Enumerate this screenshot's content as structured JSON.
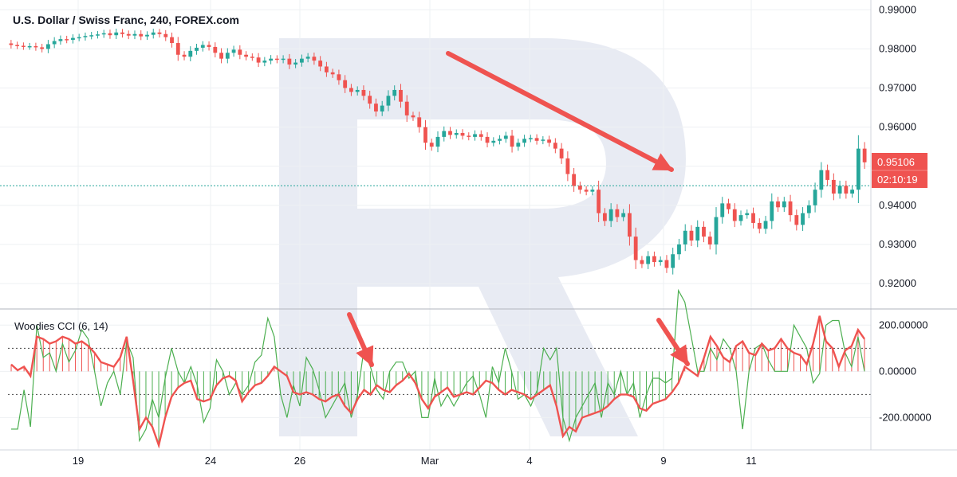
{
  "chart_data": [
    {
      "type": "candlestick",
      "title": "U.S. Dollar / Swiss Franc, 240, FOREX.com",
      "x_ticks": [
        "19",
        "24",
        "26",
        "Mar",
        "4",
        "9",
        "11"
      ],
      "y_ticks": [
        "0.99000",
        "0.98000",
        "0.97000",
        "0.96000",
        "0.95000",
        "0.94000",
        "0.93000",
        "0.92000"
      ],
      "ylim": [
        0.9135,
        0.9925
      ],
      "price_label": "0.95106",
      "countdown_label": "02:10:19",
      "dotted_price_line": 0.945,
      "colors": {
        "up": "#26a69a",
        "down": "#ef5350",
        "arrow": "#ef5350"
      },
      "closes": [
        0.981,
        0.9808,
        0.9806,
        0.9807,
        0.9804,
        0.98,
        0.9812,
        0.982,
        0.9825,
        0.9823,
        0.9828,
        0.983,
        0.9833,
        0.9835,
        0.9837,
        0.984,
        0.9835,
        0.9842,
        0.9838,
        0.9834,
        0.9838,
        0.9832,
        0.9836,
        0.9842,
        0.9838,
        0.983,
        0.9815,
        0.9785,
        0.978,
        0.9795,
        0.9803,
        0.981,
        0.9805,
        0.979,
        0.9775,
        0.979,
        0.9798,
        0.9785,
        0.978,
        0.9778,
        0.9765,
        0.977,
        0.9775,
        0.9772,
        0.9775,
        0.976,
        0.9765,
        0.9775,
        0.978,
        0.977,
        0.9755,
        0.974,
        0.9735,
        0.972,
        0.97,
        0.969,
        0.9695,
        0.968,
        0.966,
        0.964,
        0.9655,
        0.968,
        0.9695,
        0.9665,
        0.963,
        0.9625,
        0.96,
        0.956,
        0.955,
        0.9575,
        0.959,
        0.958,
        0.9585,
        0.9578,
        0.9575,
        0.9582,
        0.9575,
        0.956,
        0.9565,
        0.957,
        0.9578,
        0.955,
        0.956,
        0.957,
        0.9572,
        0.9565,
        0.9568,
        0.956,
        0.9545,
        0.952,
        0.948,
        0.945,
        0.944,
        0.9435,
        0.944,
        0.938,
        0.936,
        0.939,
        0.937,
        0.938,
        0.932,
        0.926,
        0.925,
        0.927,
        0.9255,
        0.926,
        0.924,
        0.9275,
        0.93,
        0.9335,
        0.931,
        0.9345,
        0.932,
        0.93,
        0.937,
        0.9405,
        0.939,
        0.936,
        0.9375,
        0.938,
        0.9355,
        0.934,
        0.936,
        0.941,
        0.9395,
        0.941,
        0.9375,
        0.935,
        0.938,
        0.94,
        0.944,
        0.949,
        0.9465,
        0.943,
        0.945,
        0.943,
        0.944,
        0.9545,
        0.951
      ]
    },
    {
      "type": "line",
      "title": "Woodies CCI (6, 14)",
      "y_ticks": [
        "200.00000",
        "0.00000",
        "-200.00000"
      ],
      "ylim": [
        -340,
        270
      ],
      "reference_lines": [
        100,
        -100
      ],
      "colors": {
        "cci14": "#ef5350",
        "cci6": "#4caf50",
        "histogram_above": "#ef5350",
        "histogram_below": "#4caf50"
      },
      "cci14": [
        30,
        5,
        20,
        -20,
        150,
        140,
        120,
        130,
        150,
        140,
        120,
        130,
        110,
        80,
        40,
        30,
        20,
        60,
        150,
        -40,
        -250,
        -200,
        -240,
        -320,
        -200,
        -110,
        -70,
        -50,
        -40,
        -120,
        -130,
        -120,
        -60,
        -30,
        -20,
        -40,
        -130,
        -90,
        -60,
        -50,
        -20,
        20,
        0,
        -20,
        -90,
        -100,
        -90,
        -100,
        -120,
        -130,
        -110,
        -100,
        -150,
        -180,
        -120,
        -80,
        -100,
        -60,
        -80,
        -90,
        -60,
        -40,
        -10,
        -50,
        -120,
        -160,
        -110,
        -90,
        -70,
        -110,
        -100,
        -90,
        -100,
        -70,
        -40,
        -50,
        -80,
        -100,
        -80,
        -90,
        -100,
        -120,
        -100,
        -80,
        -60,
        -150,
        -280,
        -240,
        -260,
        -200,
        -190,
        -180,
        -170,
        -150,
        -120,
        -100,
        -100,
        -110,
        -160,
        -170,
        -140,
        -130,
        -120,
        -90,
        -50,
        20,
        0,
        -20,
        60,
        150,
        110,
        60,
        40,
        110,
        130,
        80,
        70,
        120,
        90,
        100,
        140,
        100,
        80,
        70,
        30,
        120,
        240,
        130,
        100,
        20,
        90,
        110,
        180,
        140
      ],
      "cci6": [
        -250,
        -250,
        -80,
        -240,
        200,
        60,
        80,
        0,
        120,
        40,
        90,
        180,
        140,
        0,
        -150,
        -50,
        0,
        -100,
        130,
        60,
        -300,
        -250,
        -120,
        -200,
        -30,
        100,
        0,
        -50,
        20,
        -60,
        -220,
        -160,
        50,
        0,
        -100,
        -50,
        -100,
        -60,
        40,
        70,
        230,
        150,
        -100,
        -200,
        -60,
        -150,
        60,
        10,
        -80,
        -200,
        -150,
        -100,
        -50,
        -200,
        -100,
        100,
        20,
        -80,
        -120,
        0,
        40,
        40,
        -30,
        0,
        -200,
        -200,
        -30,
        -150,
        -100,
        -150,
        -100,
        -50,
        -20,
        -100,
        -200,
        20,
        -50,
        100,
        0,
        -120,
        -100,
        -150,
        -80,
        100,
        50,
        100,
        -200,
        -300,
        -200,
        -150,
        -100,
        -50,
        -200,
        -50,
        -100,
        0,
        -100,
        -50,
        -200,
        -100,
        -30,
        -30,
        -50,
        -30,
        350,
        300,
        150,
        0,
        0,
        100,
        50,
        140,
        100,
        0,
        -250,
        0,
        100,
        120,
        50,
        0,
        0,
        0,
        200,
        150,
        100,
        -50,
        -10,
        200,
        220,
        220,
        80,
        20,
        150,
        0
      ]
    }
  ]
}
